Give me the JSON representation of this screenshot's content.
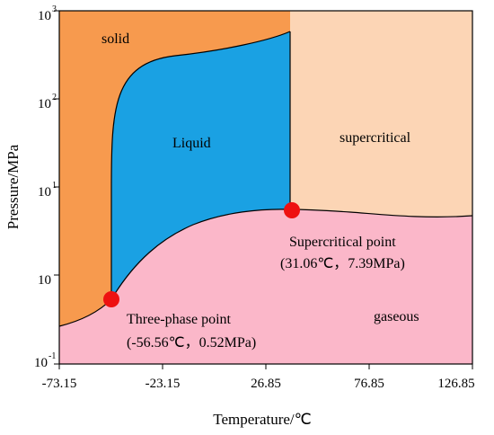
{
  "axes": {
    "x_title": "Temperature/℃",
    "y_title": "Pressure/MPa",
    "x_ticks": [
      "-73.15",
      "-23.15",
      "26.85",
      "76.85",
      "126.85"
    ],
    "y_ticks": [
      {
        "base": "10",
        "sup": "3"
      },
      {
        "base": "10",
        "sup": "2"
      },
      {
        "base": "10",
        "sup": "1"
      },
      {
        "base": "10",
        "sup": ""
      },
      {
        "base": "10",
        "sup": "-1"
      }
    ]
  },
  "regions": {
    "solid": "solid",
    "liquid": "Liquid",
    "supercritical": "supercritical",
    "gaseous": "gaseous"
  },
  "points": {
    "critical": {
      "label": "Supercritical point",
      "coords": "(31.06℃，7.39MPa)",
      "color": "#ee1111"
    },
    "triple": {
      "label": "Three-phase point",
      "coords": "(-56.56℃，0.52MPa)",
      "color": "#ee1111"
    }
  },
  "colors": {
    "solid": "#f79a4e",
    "liquid": "#1aa1e3",
    "supercritical": "#fcd5b5",
    "gaseous": "#fbb7c9"
  }
}
